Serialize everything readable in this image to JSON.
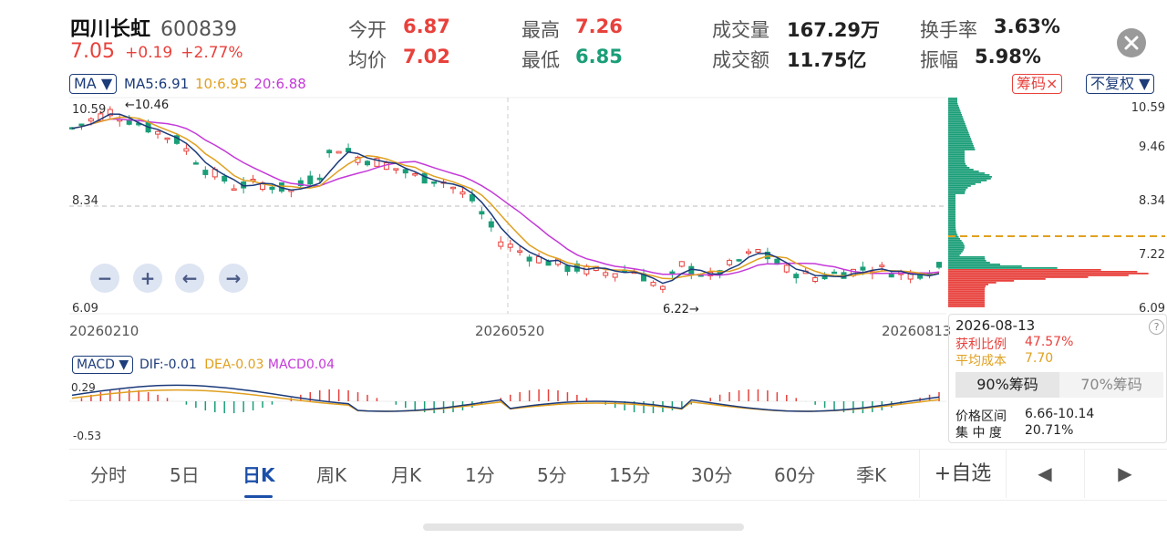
{
  "stock": {
    "name": "四川长虹",
    "code": "600839",
    "price": "7.05",
    "change": "+0.19",
    "change_pct": "+2.77%"
  },
  "quote": {
    "open_label": "今开",
    "open": "6.87",
    "avg_label": "均价",
    "avg": "7.02",
    "high_label": "最高",
    "high": "7.26",
    "low_label": "最低",
    "low": "6.85",
    "vol_label": "成交量",
    "vol": "167.29万",
    "amt_label": "成交额",
    "amt": "11.75亿",
    "turn_label": "换手率",
    "turn": "3.63%",
    "amp_label": "振幅",
    "amp": "5.98%"
  },
  "ma": {
    "selector": "MA",
    "ma5": "MA5:6.91",
    "ma10": "10:6.95",
    "ma20": "20:6.88"
  },
  "right_controls": {
    "chips": "筹码",
    "chips_close": "×",
    "adjust": "不复权"
  },
  "kline": {
    "y_top": "10.59",
    "y_mid": "8.34",
    "y_bot": "6.09",
    "max_marker": "←10.46",
    "min_marker": "6.22→",
    "dates": [
      "20260210",
      "20260520",
      "20260813"
    ]
  },
  "nav_buttons": {
    "zoom_out": "−",
    "zoom_in": "+",
    "prev": "←",
    "next": "→"
  },
  "chips_panel": {
    "axis": [
      "10.59",
      "9.46",
      "8.34",
      "7.22",
      "6.09"
    ],
    "date": "2026-08-13",
    "profit_label": "获利比例",
    "profit": "47.57%",
    "cost_label": "平均成本",
    "cost": "7.70",
    "tab90": "90%筹码",
    "tab70": "70%筹码",
    "range_label": "价格区间",
    "range": "6.66-10.14",
    "conc_label": "集 中 度",
    "conc": "20.71%",
    "help": "?"
  },
  "macd": {
    "selector": "MACD",
    "dif": "DIF:-0.01",
    "dea": "DEA-0.03",
    "macd": "MACD0.04",
    "y_top": "0.29",
    "y_bot": "-0.53"
  },
  "tabs": [
    "分时",
    "5日",
    "日K",
    "周K",
    "月K",
    "1分",
    "5分",
    "15分",
    "30分",
    "60分",
    "季K"
  ],
  "active_tab": "日K",
  "add_watch": "+自选",
  "page_prev": "◀",
  "page_next": "▶",
  "colors": {
    "up": "#e8413c",
    "down": "#1a9e78",
    "ma5": "#1b3a7a",
    "ma10": "#e0a020",
    "ma20": "#c43ad8",
    "accent": "#1c4fa8"
  }
}
